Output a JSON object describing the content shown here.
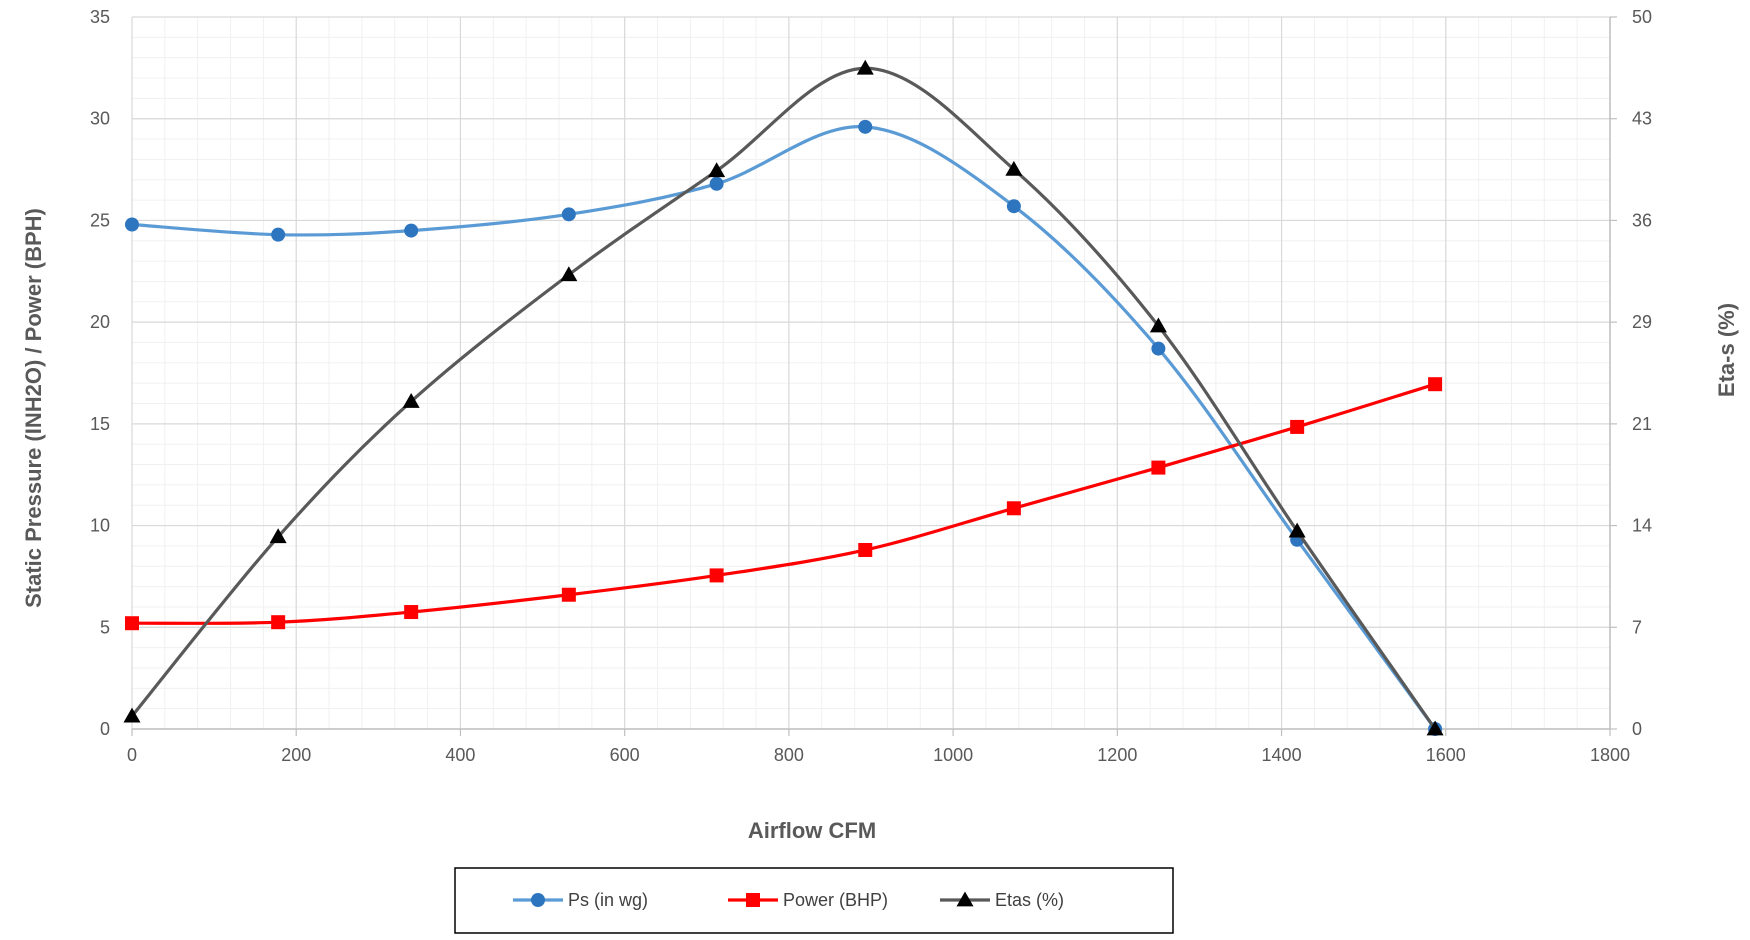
{
  "colors": {
    "ps": "#5B9BD5",
    "ps_marker": "#2E75C0",
    "power": "#FF0000",
    "etas": "#595959",
    "etas_marker": "#000000",
    "grid_major": "#D9D9D9",
    "grid_minor": "#F0F0F0",
    "axis_text": "#595959"
  },
  "chart_data": {
    "type": "line",
    "xlabel": "Airflow CFM",
    "ylabel": "Static Pressure (INH2O) / Power (BPH)",
    "y2label": "Eta-s (%)",
    "xlim": [
      0,
      1800
    ],
    "ylim": [
      0,
      35
    ],
    "y2lim": [
      0,
      50
    ],
    "x_ticks": [
      "0",
      "200",
      "400",
      "600",
      "800",
      "1000",
      "1200",
      "1400",
      "1600",
      "1800"
    ],
    "y_ticks": [
      "0",
      "5",
      "10",
      "15",
      "20",
      "25",
      "30",
      "35"
    ],
    "y2_ticks": [
      "0",
      "7",
      "14",
      "21",
      "29",
      "36",
      "43",
      "50"
    ],
    "grid": true,
    "smooth": true,
    "legend_position": "bottom",
    "series": [
      {
        "name": "Ps (in wg)",
        "axis": "left",
        "marker": "circle",
        "x": [
          0,
          178,
          340,
          532,
          712,
          893,
          1074,
          1250,
          1419,
          1587
        ],
        "values": [
          24.8,
          24.3,
          24.5,
          25.3,
          26.8,
          29.6,
          25.7,
          18.7,
          9.3,
          0
        ]
      },
      {
        "name": "Power (BHP)",
        "axis": "left",
        "marker": "square",
        "x": [
          0,
          178,
          340,
          532,
          712,
          893,
          1074,
          1250,
          1419,
          1587
        ],
        "values": [
          5.2,
          5.25,
          5.75,
          6.6,
          7.55,
          8.8,
          10.85,
          12.85,
          14.85,
          16.95
        ]
      },
      {
        "name": "Etas (%)",
        "axis": "right",
        "marker": "triangle",
        "x": [
          0,
          178,
          340,
          532,
          712,
          893,
          1074,
          1250,
          1419,
          1587
        ],
        "values": [
          0.9,
          13.5,
          23.0,
          31.9,
          39.2,
          46.4,
          39.3,
          28.3,
          13.9,
          0
        ]
      }
    ]
  }
}
